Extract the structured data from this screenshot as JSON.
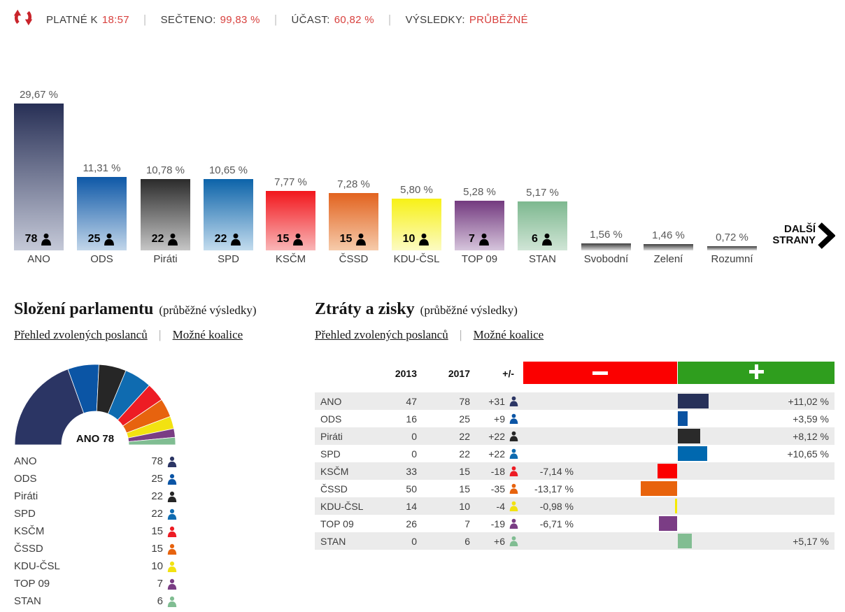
{
  "header": {
    "logo_color": "#c9242b",
    "divider": "|",
    "accent": "#d8413e",
    "stats": [
      {
        "label": "PLATNÉ K",
        "value": "18:57"
      },
      {
        "label": "SEČTENO:",
        "value": "99,83 %"
      },
      {
        "label": "ÚČAST:",
        "value": "60,82 %"
      },
      {
        "label": "VÝSLEDKY:",
        "value": "PRŮBĚŽNÉ"
      }
    ]
  },
  "bar_chart": {
    "more_parties": {
      "line1": "DALŠÍ",
      "line2": "STRANY"
    },
    "bars": [
      {
        "name": "ANO",
        "pct": 29.67,
        "pct_label": "29,67 %",
        "seats": 78,
        "grad_top": "#272f55",
        "grad_bottom": "#c5c9d8"
      },
      {
        "name": "ODS",
        "pct": 11.31,
        "pct_label": "11,31 %",
        "seats": 25,
        "grad_top": "#0e58a7",
        "grad_bottom": "#c2d6ea"
      },
      {
        "name": "Piráti",
        "pct": 10.78,
        "pct_label": "10,78 %",
        "seats": 22,
        "grad_top": "#2b2b2b",
        "grad_bottom": "#c6c6c6"
      },
      {
        "name": "SPD",
        "pct": 10.65,
        "pct_label": "10,65 %",
        "seats": 22,
        "grad_top": "#0c63a9",
        "grad_bottom": "#c3dcee"
      },
      {
        "name": "KSČM",
        "pct": 7.77,
        "pct_label": "7,77 %",
        "seats": 15,
        "grad_top": "#f2161c",
        "grad_bottom": "#f9b6b7"
      },
      {
        "name": "ČSSD",
        "pct": 7.28,
        "pct_label": "7,28 %",
        "seats": 15,
        "grad_top": "#e2631f",
        "grad_bottom": "#f6cbab"
      },
      {
        "name": "KDU-ČSL",
        "pct": 5.8,
        "pct_label": "5,80 %",
        "seats": 10,
        "grad_top": "#f7f116",
        "grad_bottom": "#fcfbc3"
      },
      {
        "name": "TOP 09",
        "pct": 5.28,
        "pct_label": "5,28 %",
        "seats": 7,
        "grad_top": "#733a7f",
        "grad_bottom": "#d6c5dc"
      },
      {
        "name": "STAN",
        "pct": 5.17,
        "pct_label": "5,17 %",
        "seats": 6,
        "grad_top": "#7db88f",
        "grad_bottom": "#d0e5d6"
      },
      {
        "name": "Svobodní",
        "pct": 1.56,
        "pct_label": "1,56 %",
        "seats": null,
        "grad_top": "#3d3d3d",
        "grad_bottom": "#dcdcdc"
      },
      {
        "name": "Zelení",
        "pct": 1.46,
        "pct_label": "1,46 %",
        "seats": null,
        "grad_top": "#3d3d3d",
        "grad_bottom": "#dcdcdc"
      },
      {
        "name": "Rozumní",
        "pct": 0.72,
        "pct_label": "0,72 %",
        "seats": null,
        "grad_top": "#3d3d3d",
        "grad_bottom": "#dcdcdc"
      }
    ]
  },
  "parliament": {
    "title": "Složení parlamentu",
    "subtitle": "(průběžné výsledky)",
    "links": [
      "Přehled zvolených poslanců",
      "Možné koalice"
    ],
    "center_label": "ANO 78",
    "total_seats": 200,
    "rows": [
      {
        "name": "ANO",
        "seats": 78,
        "color": "#2b3564"
      },
      {
        "name": "ODS",
        "seats": 25,
        "color": "#0b55a5"
      },
      {
        "name": "Piráti",
        "seats": 22,
        "color": "#262626"
      },
      {
        "name": "SPD",
        "seats": 22,
        "color": "#0f6bb0"
      },
      {
        "name": "KSČM",
        "seats": 15,
        "color": "#ed1c24"
      },
      {
        "name": "ČSSD",
        "seats": 15,
        "color": "#e7630e"
      },
      {
        "name": "KDU-ČSL",
        "seats": 10,
        "color": "#f2e211"
      },
      {
        "name": "TOP 09",
        "seats": 7,
        "color": "#7a3d84"
      },
      {
        "name": "STAN",
        "seats": 6,
        "color": "#80bd92"
      }
    ]
  },
  "gains": {
    "title": "Ztráty a zisky",
    "subtitle": "(průběžné výsledky)",
    "links": [
      "Přehled zvolených poslanců",
      "Možné koalice"
    ],
    "columns": [
      "2013",
      "2017",
      "+/-"
    ],
    "minus_color": "#fb0000",
    "plus_color": "#2f9e1e",
    "rows": [
      {
        "name": "ANO",
        "y2013": 47,
        "y2017": 78,
        "diff": "+31",
        "pct": 11.02,
        "pct_label": "+11,02 %",
        "color": "#273159"
      },
      {
        "name": "ODS",
        "y2013": 16,
        "y2017": 25,
        "diff": "+9",
        "pct": 3.59,
        "pct_label": "+3,59 %",
        "color": "#0a52a1"
      },
      {
        "name": "Piráti",
        "y2013": 0,
        "y2017": 22,
        "diff": "+22",
        "pct": 8.12,
        "pct_label": "+8,12 %",
        "color": "#2a2a2a"
      },
      {
        "name": "SPD",
        "y2013": 0,
        "y2017": 22,
        "diff": "+22",
        "pct": 10.65,
        "pct_label": "+10,65 %",
        "color": "#0068af"
      },
      {
        "name": "KSČM",
        "y2013": 33,
        "y2017": 15,
        "diff": "-18",
        "pct": -7.14,
        "pct_label": "-7,14 %",
        "color": "#fb0000"
      },
      {
        "name": "ČSSD",
        "y2013": 50,
        "y2017": 15,
        "diff": "-35",
        "pct": -13.17,
        "pct_label": "-13,17 %",
        "color": "#e8630c"
      },
      {
        "name": "KDU-ČSL",
        "y2013": 14,
        "y2017": 10,
        "diff": "-4",
        "pct": -0.98,
        "pct_label": "-0,98 %",
        "color": "#f6ea00"
      },
      {
        "name": "TOP 09",
        "y2013": 26,
        "y2017": 7,
        "diff": "-19",
        "pct": -6.71,
        "pct_label": "-6,71 %",
        "color": "#7b3d85"
      },
      {
        "name": "STAN",
        "y2013": 0,
        "y2017": 6,
        "diff": "+6",
        "pct": 5.17,
        "pct_label": "+5,17 %",
        "color": "#82bd92"
      }
    ]
  },
  "chart_data": [
    {
      "type": "bar",
      "title": "",
      "categories": [
        "ANO",
        "ODS",
        "Piráti",
        "SPD",
        "KSČM",
        "ČSSD",
        "KDU-ČSL",
        "TOP 09",
        "STAN",
        "Svobodní",
        "Zelení",
        "Rozumní"
      ],
      "values": [
        29.67,
        11.31,
        10.78,
        10.65,
        7.77,
        7.28,
        5.8,
        5.28,
        5.17,
        1.56,
        1.46,
        0.72
      ],
      "value_labels": [
        "29,67 %",
        "11,31 %",
        "10,78 %",
        "10,65 %",
        "7,77 %",
        "7,28 %",
        "5,80 %",
        "5,28 %",
        "5,17 %",
        "1,56 %",
        "1,46 %",
        "0,72 %"
      ],
      "seats": [
        78,
        25,
        22,
        22,
        15,
        15,
        10,
        7,
        6,
        null,
        null,
        null
      ],
      "unit": "%",
      "ylim": [
        0,
        30
      ],
      "grid": false,
      "legend": "none"
    },
    {
      "type": "pie",
      "variant": "half-donut",
      "title": "Složení parlamentu",
      "categories": [
        "ANO",
        "ODS",
        "Piráti",
        "SPD",
        "KSČM",
        "ČSSD",
        "KDU-ČSL",
        "TOP 09",
        "STAN"
      ],
      "values": [
        78,
        25,
        22,
        22,
        15,
        15,
        10,
        7,
        6
      ],
      "total_seats": 200,
      "center_label": "ANO 78"
    },
    {
      "type": "table",
      "title": "Ztráty a zisky",
      "columns": [
        "",
        "2013",
        "2017",
        "+/-",
        "change_pct"
      ],
      "rows": [
        [
          "ANO",
          47,
          78,
          "+31",
          "+11,02 %"
        ],
        [
          "ODS",
          16,
          25,
          "+9",
          "+3,59 %"
        ],
        [
          "Piráti",
          0,
          22,
          "+22",
          "+8,12 %"
        ],
        [
          "SPD",
          0,
          22,
          "+22",
          "+10,65 %"
        ],
        [
          "KSČM",
          33,
          15,
          "-18",
          "-7,14 %"
        ],
        [
          "ČSSD",
          50,
          15,
          "-35",
          "-13,17 %"
        ],
        [
          "KDU-ČSL",
          14,
          10,
          "-4",
          "-0,98 %"
        ],
        [
          "TOP 09",
          26,
          7,
          "-19",
          "-6,71 %"
        ],
        [
          "STAN",
          0,
          6,
          "+6",
          "+5,17 %"
        ]
      ]
    }
  ]
}
